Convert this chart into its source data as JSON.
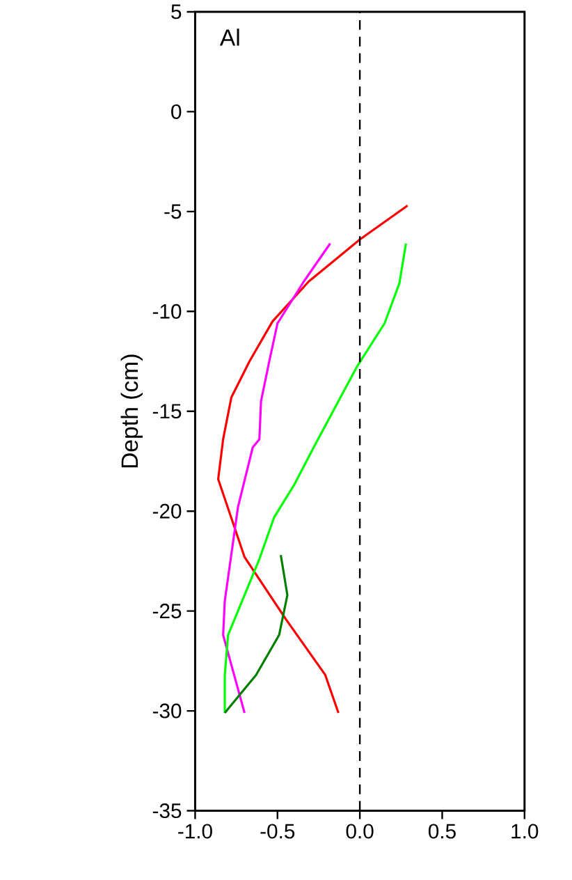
{
  "chart_data": {
    "type": "line",
    "ylabel": "Depth (cm)",
    "annotations": [
      "Al"
    ],
    "xlim": [
      -1.0,
      1.0
    ],
    "ylim": [
      -35,
      5
    ],
    "xticks": [
      {
        "value": -1.0,
        "label": "-1.0"
      },
      {
        "value": -0.5,
        "label": "-0.5"
      },
      {
        "value": 0.0,
        "label": "0.0"
      },
      {
        "value": 0.5,
        "label": "0.5"
      },
      {
        "value": 1.0,
        "label": "1.0"
      }
    ],
    "yticks": [
      -35,
      -30,
      -25,
      -20,
      -15,
      -10,
      -5,
      0,
      5
    ],
    "grid": false,
    "marker": "none",
    "line_style": "solid",
    "ref_lines": [
      {
        "axis": "x",
        "value": 0.0,
        "line_style": "dashed",
        "color": "#000000"
      }
    ],
    "series": [
      {
        "color": "#ff0000",
        "x": [
          0.29,
          0.0,
          -0.31,
          -0.53,
          -0.67,
          -0.78,
          -0.83,
          -0.86,
          -0.7,
          -0.45,
          -0.21,
          -0.13
        ],
        "values": [
          -4.7,
          -6.4,
          -8.5,
          -10.5,
          -12.5,
          -14.3,
          -16.4,
          -18.4,
          -22.3,
          -25.4,
          -28.2,
          -30.1
        ]
      },
      {
        "color": "#ff00ff",
        "x": [
          -0.18,
          -0.34,
          -0.5,
          -0.55,
          -0.6,
          -0.61,
          -0.65,
          -0.74,
          -0.82,
          -0.83,
          -0.7
        ],
        "values": [
          -6.6,
          -8.5,
          -10.6,
          -12.5,
          -14.5,
          -16.4,
          -16.8,
          -19.8,
          -24.5,
          -26.2,
          -30.1
        ]
      },
      {
        "color": "#00ff00",
        "x": [
          0.28,
          0.24,
          0.15,
          -0.02,
          -0.28,
          -0.4,
          -0.52,
          -0.61,
          -0.8,
          -0.82,
          -0.82
        ],
        "values": [
          -6.6,
          -8.6,
          -10.6,
          -12.8,
          -16.8,
          -18.7,
          -20.3,
          -22.4,
          -26.2,
          -28.2,
          -30.1
        ]
      },
      {
        "color": "#007f00",
        "x": [
          -0.48,
          -0.44,
          -0.49,
          -0.63,
          -0.82
        ],
        "values": [
          -22.2,
          -24.2,
          -26.2,
          -28.2,
          -30.1
        ]
      }
    ]
  }
}
